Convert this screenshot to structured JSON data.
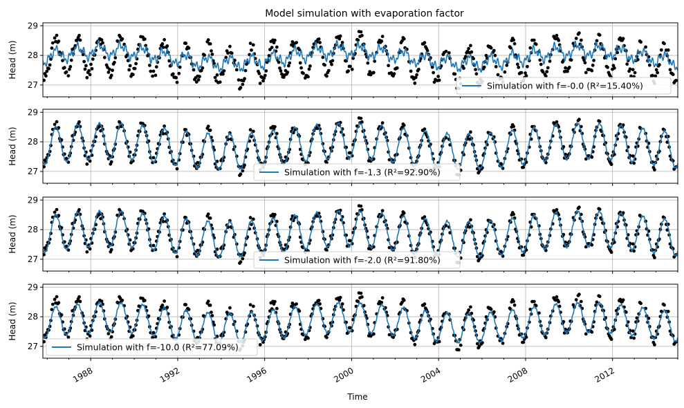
{
  "chart_data": {
    "type": "line",
    "title": "Model simulation with evaporation factor",
    "xlabel": "Time",
    "ylabel": "Head (m)",
    "xlim": [
      1985.8,
      2015.0
    ],
    "ylim": [
      26.6,
      29.1
    ],
    "x_ticks": [
      1988,
      1992,
      1996,
      2000,
      2004,
      2008,
      2012
    ],
    "y_ticks": [
      27,
      28,
      29
    ],
    "grid": true,
    "observation_color": "#000000",
    "simulation_color": "#1f77b4",
    "panels": [
      {
        "legend_label": "Simulation with f=-0.0 (R²=15.40%)",
        "legend_position": "lower-right",
        "f": -0.0,
        "r2_percent": 15.4
      },
      {
        "legend_label": "Simulation with f=-1.3 (R²=92.90%)",
        "legend_position": "lower-center",
        "f": -1.3,
        "r2_percent": 92.9
      },
      {
        "legend_label": "Simulation with f=-2.0 (R²=91.80%)",
        "legend_position": "lower-center",
        "f": -2.0,
        "r2_percent": 91.8
      },
      {
        "legend_label": "Simulation with f=-10.0 (R²=77.09%)",
        "legend_position": "lower-left",
        "f": -10.0,
        "r2_percent": 77.09
      }
    ]
  }
}
